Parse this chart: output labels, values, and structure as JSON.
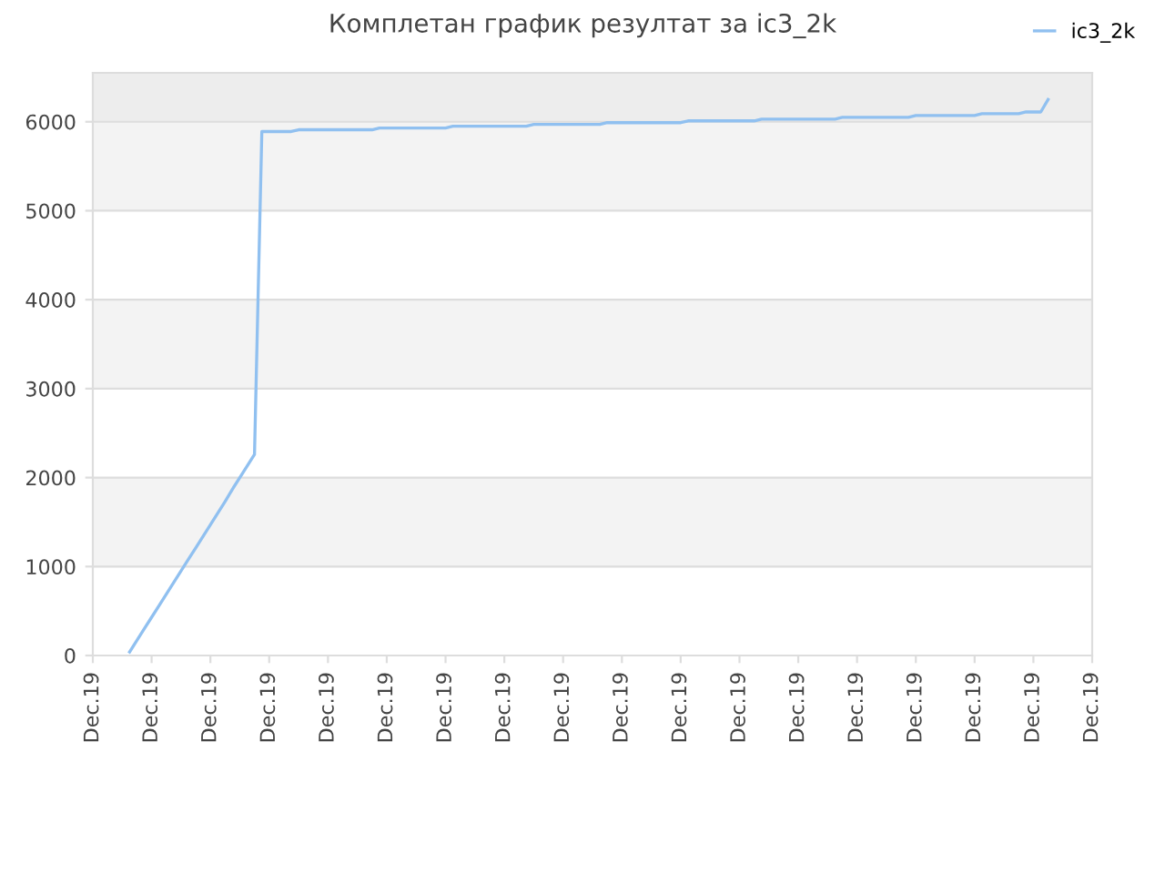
{
  "chart_data": {
    "type": "line",
    "title": "Комплетан график резултат за ic3_2k",
    "categories": [
      "Dec.19",
      null,
      null,
      null,
      null,
      null,
      null,
      null,
      "Dec.19",
      null,
      null,
      null,
      null,
      null,
      null,
      null,
      "Dec.19",
      null,
      null,
      null,
      null,
      null,
      null,
      null,
      "Dec.19",
      null,
      null,
      null,
      null,
      null,
      null,
      null,
      "Dec.19",
      null,
      null,
      null,
      null,
      null,
      null,
      null,
      "Dec.19",
      null,
      null,
      null,
      null,
      null,
      null,
      null,
      "Dec.19",
      null,
      null,
      null,
      null,
      null,
      null,
      null,
      "Dec.19",
      null,
      null,
      null,
      null,
      null,
      null,
      null,
      "Dec.19",
      null,
      null,
      null,
      null,
      null,
      null,
      null,
      "Dec.19",
      null,
      null,
      null,
      null,
      null,
      null,
      null,
      "Dec.19",
      null,
      null,
      null,
      null,
      null,
      null,
      null,
      "Dec.19",
      null,
      null,
      null,
      null,
      null,
      null,
      null,
      "Dec.19",
      null,
      null,
      null,
      null,
      null,
      null,
      null,
      "Dec.19",
      null,
      null,
      null,
      null,
      null,
      null,
      null,
      "Dec.19",
      null,
      null,
      null,
      null,
      null,
      null,
      null,
      "Dec.19",
      null,
      null,
      null,
      null,
      null,
      null,
      null,
      "Dec.19",
      null,
      null,
      null,
      null,
      null,
      null,
      null,
      "Dec.19"
    ],
    "ylim": [
      0,
      6550
    ],
    "yticks": [
      0,
      1000,
      2000,
      3000,
      4000,
      5000,
      6000
    ],
    "grid": "y",
    "legend": "top right",
    "marker": "none",
    "line_style": "solid",
    "bands": [
      {
        "axis": "y",
        "from": 1000,
        "to": 2000,
        "color": "#f3f3f3"
      },
      {
        "axis": "y",
        "from": 3000,
        "to": 4000,
        "color": "#f3f3f3"
      },
      {
        "axis": "y",
        "from": 5000,
        "to": 6000,
        "color": "#f3f3f3"
      },
      {
        "axis": "y",
        "from": 6000,
        "to": 6550,
        "color": "#ededed"
      }
    ],
    "series": [
      {
        "name": "ic3_2k",
        "color": "#90c0f0",
        "values": [
          null,
          null,
          null,
          null,
          null,
          40,
          170,
          300,
          430,
          560,
          690,
          820,
          950,
          1080,
          1210,
          1340,
          1470,
          1600,
          1730,
          1870,
          2000,
          2130,
          2260,
          5890,
          5890,
          5890,
          5890,
          5890,
          5910,
          5910,
          5910,
          5910,
          5910,
          5910,
          5910,
          5910,
          5910,
          5910,
          5910,
          5930,
          5930,
          5930,
          5930,
          5930,
          5930,
          5930,
          5930,
          5930,
          5930,
          5950,
          5950,
          5950,
          5950,
          5950,
          5950,
          5950,
          5950,
          5950,
          5950,
          5950,
          5970,
          5970,
          5970,
          5970,
          5970,
          5970,
          5970,
          5970,
          5970,
          5970,
          5990,
          5990,
          5990,
          5990,
          5990,
          5990,
          5990,
          5990,
          5990,
          5990,
          5990,
          6010,
          6010,
          6010,
          6010,
          6010,
          6010,
          6010,
          6010,
          6010,
          6010,
          6030,
          6030,
          6030,
          6030,
          6030,
          6030,
          6030,
          6030,
          6030,
          6030,
          6030,
          6050,
          6050,
          6050,
          6050,
          6050,
          6050,
          6050,
          6050,
          6050,
          6050,
          6070,
          6070,
          6070,
          6070,
          6070,
          6070,
          6070,
          6070,
          6070,
          6090,
          6090,
          6090,
          6090,
          6090,
          6090,
          6110,
          6110,
          6110,
          6250,
          null,
          null,
          null,
          null,
          null,
          null
        ]
      }
    ]
  }
}
